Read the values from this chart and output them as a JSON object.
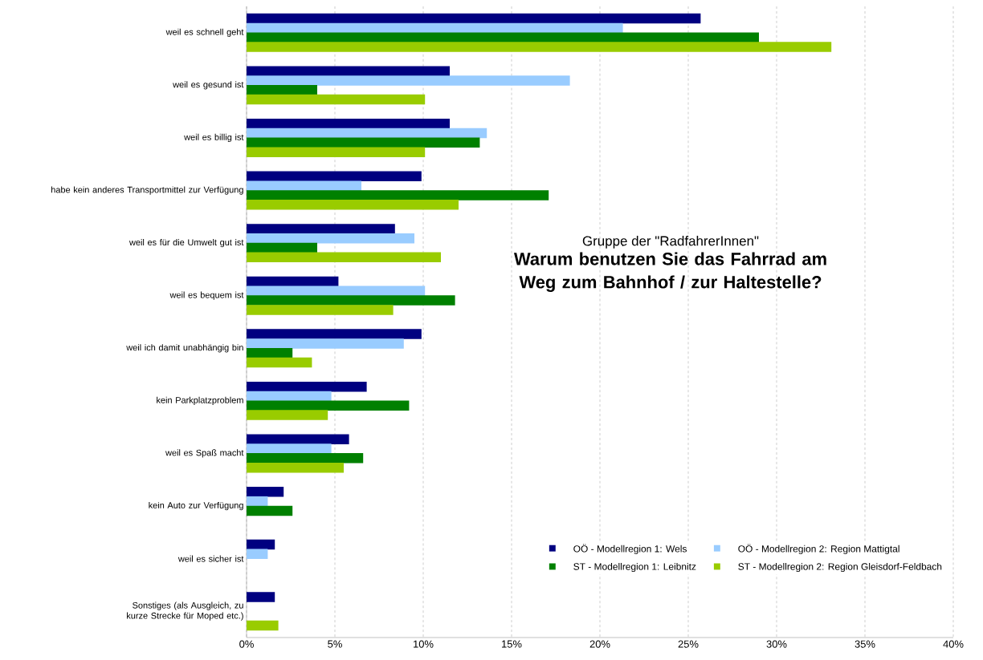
{
  "chart_data": {
    "type": "bar",
    "orientation": "horizontal",
    "title": "Warum benutzen Sie das Fahrrad am Weg zum Bahnhof / zur Haltestelle?",
    "subtitle": "Gruppe der \"RadfahrerInnen\"",
    "categories": [
      "weil es schnell geht",
      "weil es gesund ist",
      "weil es billig ist",
      "habe kein anderes Transportmittel zur Verfügung",
      "weil es für die Umwelt gut ist",
      "weil es bequem ist",
      "weil ich damit unabhängig bin",
      "kein Parkplatzproblem",
      "weil es Spaß macht",
      "kein Auto zur Verfügung",
      "weil es sicher ist",
      "Sonstiges (als Ausgleich, zu kurze Strecke für Moped etc.)"
    ],
    "series": [
      {
        "name": "OÖ - Modellregion 1: Wels",
        "color": "#000080",
        "values": [
          25.7,
          11.5,
          11.5,
          9.9,
          8.4,
          5.2,
          9.9,
          6.8,
          5.8,
          2.1,
          1.6,
          1.6
        ]
      },
      {
        "name": "OÖ - Modellregion 2: Region Mattigtal",
        "color": "#99ccff",
        "values": [
          21.3,
          18.3,
          13.6,
          6.5,
          9.5,
          10.1,
          8.9,
          4.8,
          4.8,
          1.2,
          1.2,
          null
        ]
      },
      {
        "name": "ST - Modellregion 1: Leibnitz",
        "color": "#008000",
        "values": [
          29.0,
          4.0,
          13.2,
          17.1,
          4.0,
          11.8,
          2.6,
          9.2,
          6.6,
          2.6,
          null,
          null
        ]
      },
      {
        "name": "ST - Modellregion 2: Region Gleisdorf-Feldbach",
        "color": "#99cc00",
        "values": [
          33.1,
          10.1,
          10.1,
          12.0,
          11.0,
          8.3,
          3.7,
          4.6,
          5.5,
          null,
          null,
          1.8
        ]
      }
    ],
    "xlim": [
      0,
      40
    ],
    "xticks": [
      {
        "value": 0,
        "label": "0%"
      },
      {
        "value": 5,
        "label": "5%"
      },
      {
        "value": 10,
        "label": "10%"
      },
      {
        "value": 15,
        "label": "15%"
      },
      {
        "value": 20,
        "label": "20%"
      },
      {
        "value": 25,
        "label": "25%"
      },
      {
        "value": 30,
        "label": "30%"
      },
      {
        "value": 35,
        "label": "35%"
      },
      {
        "value": 40,
        "label": "40%"
      }
    ],
    "grid": "x",
    "legend": "bottom right"
  }
}
